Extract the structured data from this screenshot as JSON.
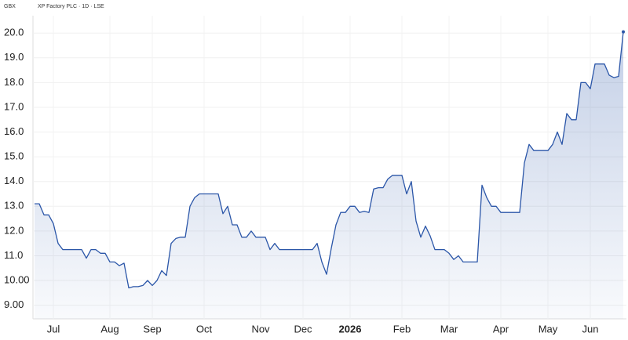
{
  "chart_data": {
    "type": "line",
    "currency": "GBX",
    "title": "XP Factory PLC · 1D · LSE",
    "categories": [
      null,
      null,
      null,
      null,
      "Jul",
      null,
      null,
      null,
      null,
      null,
      null,
      null,
      null,
      null,
      null,
      null,
      "Aug",
      null,
      null,
      null,
      null,
      null,
      null,
      null,
      null,
      "Sep",
      null,
      null,
      null,
      null,
      null,
      null,
      null,
      null,
      null,
      null,
      "Oct",
      null,
      null,
      null,
      null,
      null,
      null,
      null,
      null,
      null,
      null,
      null,
      "Nov",
      null,
      null,
      null,
      null,
      null,
      null,
      null,
      null,
      "Dec",
      null,
      null,
      null,
      null,
      null,
      null,
      null,
      null,
      null,
      "2026",
      null,
      null,
      null,
      null,
      null,
      null,
      null,
      null,
      null,
      null,
      "Feb",
      null,
      null,
      null,
      null,
      null,
      null,
      null,
      null,
      null,
      "Mar",
      null,
      null,
      null,
      null,
      null,
      null,
      null,
      null,
      null,
      null,
      "Apr",
      null,
      null,
      null,
      null,
      null,
      null,
      null,
      null,
      null,
      "May",
      null,
      null,
      null,
      null,
      null,
      null,
      null,
      null,
      "Jun",
      null,
      null,
      null,
      null,
      null,
      null,
      null
    ],
    "values": [
      13.1,
      13.1,
      12.65,
      12.65,
      12.3,
      11.5,
      11.25,
      11.25,
      11.25,
      11.25,
      11.25,
      10.9,
      11.25,
      11.25,
      11.1,
      11.1,
      10.75,
      10.75,
      10.6,
      10.7,
      9.7,
      9.75,
      9.75,
      9.8,
      10.0,
      9.8,
      10.0,
      10.4,
      10.2,
      11.5,
      11.7,
      11.75,
      11.75,
      13.0,
      13.35,
      13.5,
      13.5,
      13.5,
      13.5,
      13.5,
      12.7,
      13.0,
      12.25,
      12.25,
      11.75,
      11.75,
      12.0,
      11.75,
      11.75,
      11.75,
      11.25,
      11.5,
      11.25,
      11.25,
      11.25,
      11.25,
      11.25,
      11.25,
      11.25,
      11.25,
      11.5,
      10.75,
      10.25,
      11.3,
      12.25,
      12.75,
      12.75,
      13.0,
      13.0,
      12.75,
      12.8,
      12.75,
      13.7,
      13.75,
      13.75,
      14.1,
      14.25,
      14.25,
      14.25,
      13.5,
      14.0,
      12.4,
      11.75,
      12.2,
      11.8,
      11.25,
      11.25,
      11.25,
      11.1,
      10.85,
      11.0,
      10.75,
      10.75,
      10.75,
      10.75,
      13.85,
      13.35,
      13.0,
      13.0,
      12.75,
      12.75,
      12.75,
      12.75,
      12.75,
      14.75,
      15.5,
      15.25,
      15.25,
      15.25,
      15.25,
      15.5,
      16.0,
      15.5,
      16.75,
      16.5,
      16.5,
      18.0,
      18.0,
      17.75,
      18.75,
      18.75,
      18.75,
      18.3,
      18.2,
      18.25,
      20.05
    ],
    "color": "#2b56a8",
    "ylim": [
      8.45,
      20.45
    ],
    "yticks": [
      {
        "value": 20,
        "label": "20.0"
      },
      {
        "value": 19,
        "label": "19.0"
      },
      {
        "value": 18,
        "label": "18.0"
      },
      {
        "value": 17,
        "label": "17.0"
      },
      {
        "value": 16,
        "label": "16.0"
      },
      {
        "value": 15,
        "label": "15.0"
      },
      {
        "value": 14,
        "label": "14.0"
      },
      {
        "value": 13,
        "label": "13.0"
      },
      {
        "value": 12,
        "label": "12.0"
      },
      {
        "value": 11,
        "label": "11.0"
      },
      {
        "value": 10,
        "label": "10.00"
      },
      {
        "value": 9,
        "label": "9.00"
      }
    ],
    "grid": true
  }
}
